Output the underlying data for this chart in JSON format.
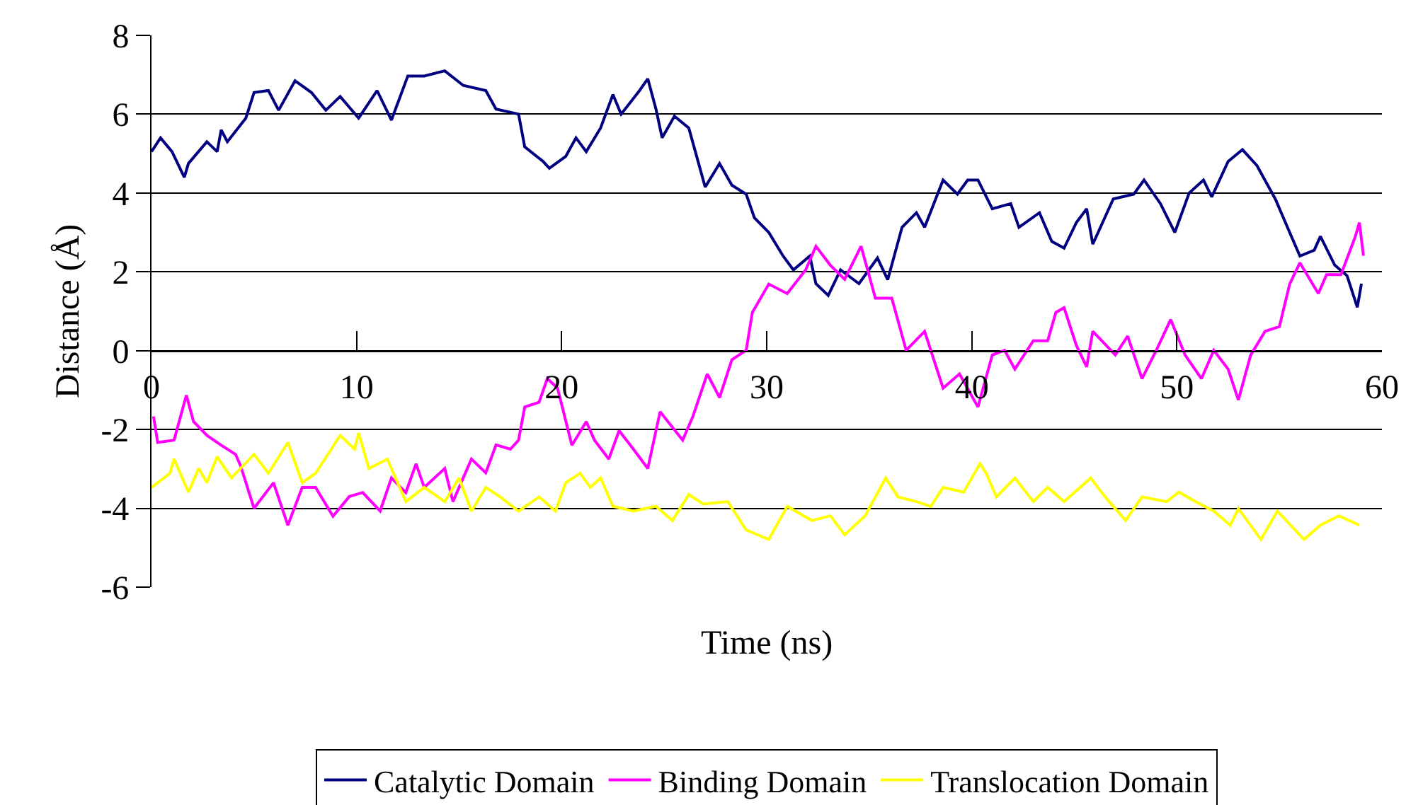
{
  "chart_data": {
    "type": "line",
    "xlabel": "Time (ns)",
    "ylabel": "Distance (Å)",
    "xlim": [
      0,
      60
    ],
    "xticks": [
      0,
      10,
      20,
      30,
      40,
      50,
      60
    ],
    "ylim": [
      -6,
      8
    ],
    "yticks": [
      -6,
      -4,
      -2,
      0,
      2,
      4,
      6,
      8
    ],
    "grid": "y",
    "legend": "bottom",
    "marker": "none",
    "line_style": "solid",
    "series": [
      {
        "name": "Catalytic Domain",
        "color": "#000080",
        "x": [
          0,
          0.44,
          1.0,
          1.6,
          1.8,
          2.7,
          3.2,
          3.4,
          3.7,
          4.6,
          5.0,
          5.7,
          6.2,
          7.0,
          7.8,
          8.5,
          9.2,
          10.1,
          11.0,
          11.7,
          12.5,
          13.3,
          14.3,
          15.2,
          16.3,
          16.8,
          17.9,
          18.2,
          19.1,
          19.4,
          20.2,
          20.7,
          21.2,
          21.9,
          22.5,
          22.9,
          23.8,
          24.2,
          24.6,
          24.9,
          25.5,
          26.2,
          27.0,
          27.7,
          28.3,
          29.0,
          29.4,
          30.1,
          30.8,
          31.3,
          32.1,
          32.4,
          33.0,
          33.6,
          34.5,
          35.4,
          35.9,
          36.6,
          37.3,
          37.7,
          38.6,
          39.3,
          39.8,
          40.3,
          41.0,
          41.9,
          42.3,
          43.3,
          43.9,
          44.5,
          45.1,
          45.6,
          45.9,
          46.9,
          47.9,
          48.4,
          49.2,
          49.9,
          50.6,
          51.3,
          51.7,
          52.5,
          53.2,
          53.9,
          54.8,
          55.5,
          56.0,
          56.7,
          57.0,
          57.7,
          58.3,
          58.8,
          59.0
        ],
        "values": [
          5.05,
          5.4,
          5.05,
          4.4,
          4.75,
          5.3,
          5.05,
          5.6,
          5.3,
          5.9,
          6.55,
          6.6,
          6.1,
          6.85,
          6.55,
          6.1,
          6.45,
          5.9,
          6.6,
          5.85,
          6.97,
          6.97,
          7.1,
          6.73,
          6.6,
          6.13,
          6.0,
          5.17,
          4.8,
          4.63,
          4.93,
          5.4,
          5.05,
          5.65,
          6.5,
          6.0,
          6.6,
          6.9,
          6.13,
          5.4,
          5.95,
          5.65,
          4.15,
          4.75,
          4.2,
          3.97,
          3.37,
          3.0,
          2.4,
          2.05,
          2.4,
          1.7,
          1.4,
          2.05,
          1.7,
          2.35,
          1.8,
          3.13,
          3.5,
          3.13,
          4.33,
          3.97,
          4.33,
          4.33,
          3.6,
          3.73,
          3.13,
          3.5,
          2.77,
          2.6,
          3.25,
          3.6,
          2.7,
          3.85,
          3.97,
          4.33,
          3.73,
          3.0,
          4.0,
          4.33,
          3.9,
          4.8,
          5.1,
          4.7,
          3.85,
          3.0,
          2.4,
          2.55,
          2.9,
          2.17,
          1.9,
          1.1,
          1.7
        ]
      },
      {
        "name": "Binding Domain",
        "color": "#ff00ff",
        "x": [
          0.1,
          0.3,
          1.1,
          1.7,
          2.05,
          2.7,
          3.4,
          4.1,
          4.35,
          5.0,
          5.95,
          6.65,
          7.35,
          8.0,
          8.85,
          9.65,
          10.3,
          11.15,
          11.7,
          12.4,
          12.9,
          13.3,
          14.3,
          14.7,
          15.6,
          16.3,
          16.8,
          17.5,
          17.9,
          18.2,
          18.9,
          19.3,
          19.8,
          20.5,
          21.2,
          21.6,
          22.3,
          22.8,
          23.5,
          24.2,
          24.8,
          25.9,
          26.4,
          27.1,
          27.7,
          28.3,
          29.0,
          29.3,
          30.1,
          31.0,
          31.9,
          32.4,
          33.1,
          33.8,
          34.6,
          35.3,
          36.1,
          36.8,
          37.7,
          38.6,
          39.4,
          40.3,
          41.0,
          41.6,
          42.1,
          43.0,
          43.7,
          44.1,
          44.5,
          45.1,
          45.6,
          45.9,
          47.0,
          47.6,
          48.3,
          49.0,
          49.7,
          50.4,
          51.2,
          51.8,
          52.5,
          53.0,
          53.6,
          54.3,
          55.0,
          55.5,
          56.0,
          56.9,
          57.3,
          58.0,
          58.7,
          58.9,
          59.1
        ],
        "values": [
          -1.67,
          -2.33,
          -2.27,
          -1.13,
          -1.8,
          -2.15,
          -2.4,
          -2.63,
          -2.93,
          -4.0,
          -3.35,
          -4.43,
          -3.47,
          -3.47,
          -4.2,
          -3.7,
          -3.6,
          -4.07,
          -3.23,
          -3.6,
          -2.87,
          -3.47,
          -2.99,
          -3.83,
          -2.75,
          -3.1,
          -2.39,
          -2.5,
          -2.27,
          -1.43,
          -1.31,
          -0.71,
          -0.95,
          -2.4,
          -1.8,
          -2.27,
          -2.75,
          -2.03,
          -2.5,
          -2.99,
          -1.55,
          -2.27,
          -1.67,
          -0.59,
          -1.19,
          -0.23,
          0.01,
          0.97,
          1.69,
          1.45,
          2.05,
          2.65,
          2.17,
          1.81,
          2.65,
          1.33,
          1.33,
          0.01,
          0.49,
          -0.95,
          -0.59,
          -1.43,
          -0.11,
          0.01,
          -0.47,
          0.25,
          0.25,
          0.97,
          1.09,
          0.13,
          -0.41,
          0.49,
          -0.11,
          0.37,
          -0.71,
          0.01,
          0.79,
          -0.11,
          -0.71,
          0.01,
          -0.47,
          -1.25,
          -0.11,
          0.49,
          0.61,
          1.69,
          2.23,
          1.45,
          1.93,
          1.93,
          2.89,
          3.25,
          2.41
        ]
      },
      {
        "name": "Translocation Domain",
        "color": "#ffff00",
        "x": [
          0,
          0.9,
          1.1,
          1.8,
          2.3,
          2.7,
          3.2,
          3.9,
          5.0,
          5.7,
          6.65,
          7.35,
          8.0,
          9.2,
          9.9,
          10.1,
          10.6,
          11.5,
          12.4,
          13.3,
          14.3,
          15.0,
          15.6,
          16.3,
          17.0,
          17.9,
          18.9,
          19.7,
          20.2,
          20.9,
          21.4,
          21.9,
          22.5,
          23.5,
          24.6,
          25.4,
          26.2,
          26.9,
          28.1,
          29.0,
          30.1,
          31.0,
          32.2,
          33.1,
          33.8,
          34.8,
          35.8,
          36.4,
          37.3,
          38.0,
          38.6,
          39.6,
          40.4,
          40.7,
          41.2,
          42.1,
          43.0,
          43.7,
          44.5,
          45.8,
          46.5,
          47.5,
          48.3,
          49.5,
          50.1,
          50.9,
          51.8,
          52.6,
          53.0,
          54.1,
          54.9,
          56.2,
          57.0,
          57.9,
          58.9
        ],
        "values": [
          -3.47,
          -3.11,
          -2.75,
          -3.59,
          -2.99,
          -3.35,
          -2.69,
          -3.23,
          -2.63,
          -3.11,
          -2.33,
          -3.35,
          -3.11,
          -2.15,
          -2.5,
          -2.09,
          -2.99,
          -2.75,
          -3.83,
          -3.47,
          -3.83,
          -3.23,
          -4.07,
          -3.47,
          -3.71,
          -4.07,
          -3.71,
          -4.07,
          -3.35,
          -3.11,
          -3.47,
          -3.23,
          -3.95,
          -4.07,
          -3.95,
          -4.31,
          -3.65,
          -3.89,
          -3.83,
          -4.55,
          -4.79,
          -3.95,
          -4.31,
          -4.19,
          -4.67,
          -4.19,
          -3.23,
          -3.71,
          -3.83,
          -3.95,
          -3.47,
          -3.59,
          -2.87,
          -3.11,
          -3.71,
          -3.23,
          -3.83,
          -3.47,
          -3.83,
          -3.23,
          -3.71,
          -4.31,
          -3.71,
          -3.83,
          -3.59,
          -3.83,
          -4.07,
          -4.43,
          -4.01,
          -4.79,
          -4.07,
          -4.79,
          -4.43,
          -4.19,
          -4.43
        ]
      }
    ]
  }
}
